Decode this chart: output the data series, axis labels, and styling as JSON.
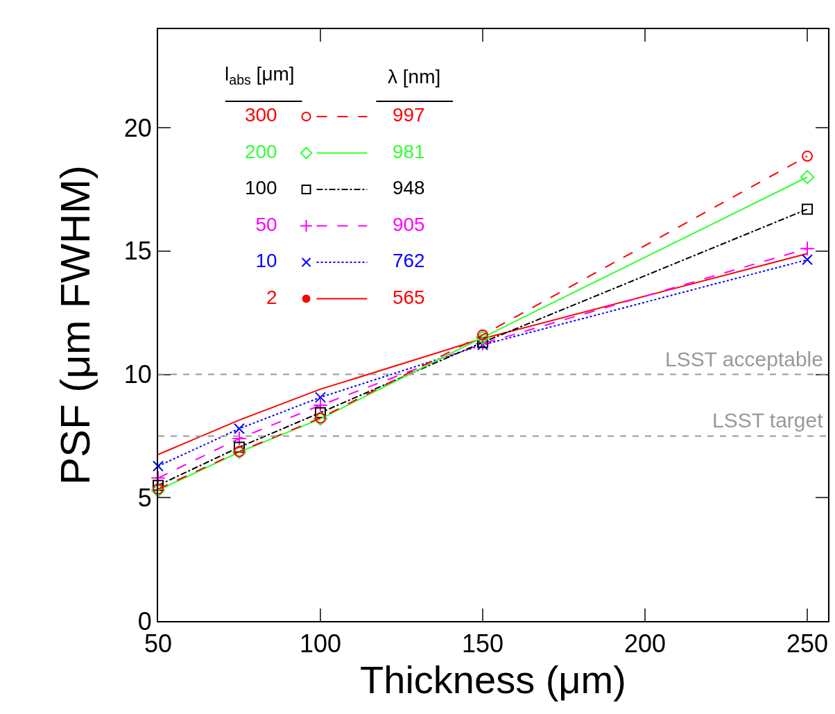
{
  "chart_data": {
    "type": "line",
    "xlabel": "Thickness (μm)",
    "ylabel": "PSF (μm FWHM)",
    "x": [
      50,
      75,
      100,
      150,
      250
    ],
    "xlim": [
      50,
      256.4
    ],
    "xticks": [
      50,
      100,
      150,
      200,
      250
    ],
    "ylim": [
      0,
      24
    ],
    "yticks": [
      0,
      5,
      10,
      15,
      20
    ],
    "legend": "top left",
    "legend_title": "l$_{abs}$ [μm]",
    "series": [
      {
        "name": "300",
        "color": "#ff0000",
        "marker": "circle",
        "line_style": "longdash",
        "values": [
          5.35,
          6.87,
          8.23,
          11.6,
          18.85
        ]
      },
      {
        "name": "200",
        "color": "#33ff33",
        "marker": "diamond",
        "line_style": "solid",
        "values": [
          5.3,
          6.85,
          8.2,
          11.5,
          18.0
        ]
      },
      {
        "name": "100",
        "color": "#000000",
        "marker": "square",
        "line_style": "dashdot",
        "values": [
          5.5,
          7.05,
          8.45,
          11.3,
          16.7
        ]
      },
      {
        "name": "50",
        "color": "#ff00ff",
        "marker": "cross",
        "line_style": "longdash",
        "values": [
          5.8,
          7.4,
          8.75,
          11.25,
          15.1
        ]
      },
      {
        "name": "10",
        "color": "#0000ff",
        "marker": "x",
        "line_style": "dotted",
        "values": [
          6.28,
          7.8,
          9.07,
          11.2,
          14.65
        ]
      },
      {
        "name": "2",
        "color": "#ff0000",
        "marker": "none",
        "line_style": "solid",
        "values": [
          6.75,
          8.15,
          9.4,
          11.45,
          14.9
        ]
      }
    ],
    "annotations": [
      "λ [nm]",
      "997",
      "981",
      "948",
      "905",
      "762",
      "565"
    ],
    "ref_lines": [
      {
        "axis": "y",
        "value": 10,
        "label": "LSST acceptable",
        "color": "#999999",
        "line_style": "dashed"
      },
      {
        "axis": "y",
        "value": 7.5,
        "label": "LSST target",
        "color": "#999999",
        "line_style": "dashed"
      }
    ]
  }
}
